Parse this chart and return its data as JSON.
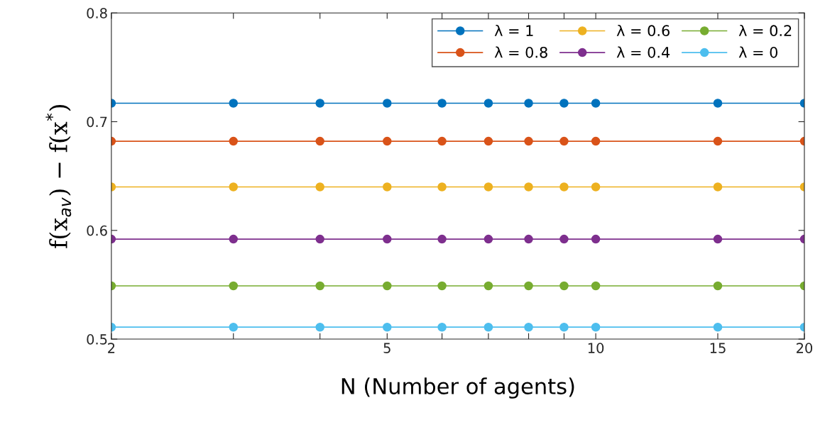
{
  "chart_data": {
    "type": "line",
    "xlabel": "N (Number of agents)",
    "ylabel": "f(x$_{av}$) − f(x$^{*}$)",
    "x": [
      2,
      3,
      4,
      5,
      6,
      7,
      8,
      9,
      10,
      15,
      20
    ],
    "log": "x",
    "xlim": [
      2,
      20
    ],
    "xticks": [
      2,
      {
        "value": 3,
        "label": null
      },
      {
        "value": 4,
        "label": null
      },
      5,
      {
        "value": 6,
        "label": null
      },
      {
        "value": 7,
        "label": null
      },
      {
        "value": 8,
        "label": null
      },
      {
        "value": 9,
        "label": null
      },
      10,
      15,
      20
    ],
    "ylim": [
      0.5,
      0.8
    ],
    "yticks": [
      0.5,
      0.6,
      0.7,
      0.8
    ],
    "grid": false,
    "legend": "top right",
    "marker": "circle",
    "line_style": "solid",
    "series": [
      {
        "name": "λ = 1",
        "color": "#0072bd",
        "values": [
          0.717,
          0.717,
          0.717,
          0.717,
          0.717,
          0.717,
          0.717,
          0.717,
          0.717,
          0.717,
          0.717
        ]
      },
      {
        "name": "λ = 0.8",
        "color": "#d95319",
        "values": [
          0.682,
          0.682,
          0.682,
          0.682,
          0.682,
          0.682,
          0.682,
          0.682,
          0.682,
          0.682,
          0.682
        ]
      },
      {
        "name": "λ = 0.6",
        "color": "#edb120",
        "values": [
          0.64,
          0.64,
          0.64,
          0.64,
          0.64,
          0.64,
          0.64,
          0.64,
          0.64,
          0.64,
          0.64
        ]
      },
      {
        "name": "λ = 0.4",
        "color": "#7e2f8e",
        "values": [
          0.592,
          0.592,
          0.592,
          0.592,
          0.592,
          0.592,
          0.592,
          0.592,
          0.592,
          0.592,
          0.592
        ]
      },
      {
        "name": "λ = 0.2",
        "color": "#77ac30",
        "values": [
          0.549,
          0.549,
          0.549,
          0.549,
          0.549,
          0.549,
          0.549,
          0.549,
          0.549,
          0.549,
          0.549
        ]
      },
      {
        "name": "λ = 0",
        "color": "#4dbeee",
        "values": [
          0.511,
          0.511,
          0.511,
          0.511,
          0.511,
          0.511,
          0.511,
          0.511,
          0.511,
          0.511,
          0.511
        ]
      }
    ]
  }
}
